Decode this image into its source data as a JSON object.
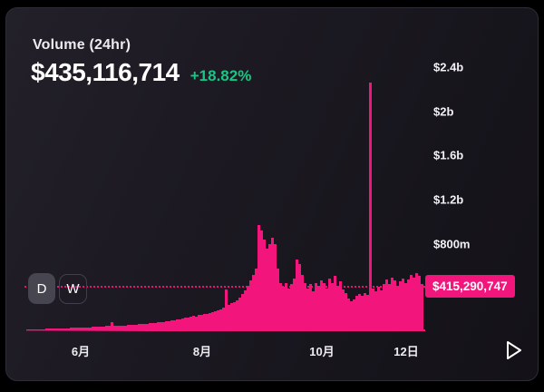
{
  "card": {
    "title": "Volume (24hr)",
    "value": "$435,116,714",
    "change": "+18.82%",
    "current_value_label": "$415,290,747"
  },
  "controls": {
    "daily_label": "D",
    "weekly_label": "W",
    "selected": "D"
  },
  "axes": {
    "y_ticks": [
      "$2.4b",
      "$2b",
      "$1.6b",
      "$1.2b",
      "$800m"
    ],
    "x_ticks": [
      "6月",
      "8月",
      "10月",
      "12日"
    ]
  },
  "colors": {
    "bar": "#f1157c",
    "change_green": "#16c784",
    "label_bg": "#f1157c"
  },
  "icons": {
    "play": "right-triangle-outline"
  },
  "chart_data": {
    "type": "bar",
    "title": "Volume (24hr)",
    "unit": "USD millions",
    "ylabel": "Volume",
    "ylim_m": [
      0,
      2400
    ],
    "y_tick_values_m": [
      2400,
      2000,
      1600,
      1200,
      800
    ],
    "y_tick_labels": [
      "$2.4b",
      "$2b",
      "$1.6b",
      "$1.2b",
      "$800m"
    ],
    "x_tick_labels": [
      "6月",
      "8月",
      "10月",
      "12日"
    ],
    "current_value_m": 415.29,
    "current_value_label": "$415,290,747",
    "legend": "none",
    "grid": "dashed current-value line only",
    "values_m": [
      8,
      9,
      9,
      10,
      10,
      11,
      12,
      13,
      13,
      14,
      15,
      16,
      17,
      18,
      18,
      20,
      21,
      22,
      23,
      24,
      25,
      26,
      27,
      28,
      30,
      31,
      33,
      35,
      36,
      38,
      40,
      78,
      42,
      40,
      41,
      43,
      45,
      46,
      48,
      50,
      52,
      54,
      56,
      58,
      60,
      63,
      66,
      68,
      71,
      74,
      78,
      82,
      86,
      90,
      94,
      98,
      102,
      107,
      112,
      118,
      124,
      130,
      126,
      136,
      142,
      150,
      145,
      158,
      166,
      174,
      183,
      190,
      205,
      370,
      230,
      245,
      258,
      272,
      295,
      325,
      365,
      400,
      450,
      500,
      560,
      950,
      900,
      820,
      740,
      780,
      840,
      780,
      560,
      430,
      390,
      430,
      380,
      420,
      470,
      640,
      600,
      500,
      430,
      380,
      420,
      350,
      430,
      400,
      450,
      430,
      380,
      470,
      430,
      490,
      400,
      440,
      370,
      340,
      290,
      260,
      280,
      310,
      330,
      310,
      340,
      320,
      2240,
      380,
      350,
      390,
      360,
      420,
      460,
      420,
      480,
      450,
      400,
      440,
      470,
      430,
      460,
      500,
      480,
      520,
      490,
      415
    ]
  }
}
